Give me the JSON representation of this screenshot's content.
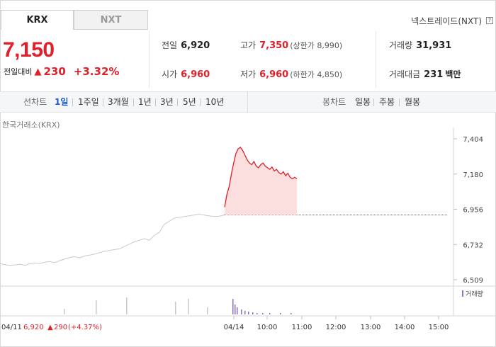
{
  "tabs": [
    {
      "label": "KRX"
    },
    {
      "label": "NXT"
    }
  ],
  "nxt_link": "넥스트레이드(NXT)",
  "quote": {
    "price": "7,150",
    "change_label": "전일대비",
    "change_value": "230",
    "change_pct": "+3.32%"
  },
  "stats": {
    "prev_close_label": "전일",
    "prev_close": "6,920",
    "open_label": "시가",
    "open": "6,960",
    "high_label": "고가",
    "high": "7,350",
    "upper_limit": "(상한가 8,990)",
    "low_label": "저가",
    "low": "6,960",
    "lower_limit": "(하한가 4,850)",
    "volume_label": "거래량",
    "volume": "31,931",
    "amount_label": "거래대금",
    "amount": "231",
    "amount_unit": "백만"
  },
  "toolbar": {
    "line_label": "선차트",
    "line_periods": [
      "1일",
      "1주일",
      "3개월",
      "1년",
      "3년",
      "5년",
      "10년"
    ],
    "candle_label": "봉차트",
    "candle_periods": [
      "일봉",
      "주봉",
      "월봉"
    ]
  },
  "source": "한국거래소(KRX)",
  "colors": {
    "up": "#e0202a",
    "active": "#1d5cc8",
    "volume": "#8a70c8"
  },
  "chart_data": {
    "type": "line",
    "y_ticks": [
      "7,404",
      "7,180",
      "6,956",
      "6,732",
      "6,509"
    ],
    "ylim": [
      6509,
      7404
    ],
    "x_ticks": [
      "04/14",
      "10:00",
      "11:00",
      "12:00",
      "13:00",
      "14:00",
      "15:00"
    ],
    "prev_day_label": "04/11",
    "prev_day_close": "6,920",
    "prev_day_change": "290",
    "prev_day_pct": "(+4.37%)",
    "volume_legend": "거래량",
    "baseline": 6920,
    "series": [
      {
        "values_prev_day": [
          6610,
          6605,
          6600,
          6603,
          6608,
          6600,
          6610,
          6615,
          6612,
          6620,
          6625,
          6618,
          6630,
          6640,
          6650,
          6655,
          6648,
          6660,
          6665,
          6672,
          6680,
          6690,
          6695,
          6700,
          6705,
          6720,
          6735,
          6750,
          6760,
          6770,
          6760,
          6790,
          6810,
          6860,
          6880,
          6900,
          6905,
          6910,
          6915,
          6920,
          6925,
          6920,
          6915,
          6910,
          6912,
          6920
        ]
      },
      {
        "values_today": [
          6970,
          7050,
          7100,
          7180,
          7250,
          7310,
          7340,
          7350,
          7330,
          7300,
          7270,
          7250,
          7240,
          7260,
          7230,
          7220,
          7240,
          7250,
          7230,
          7220,
          7210,
          7225,
          7200,
          7210,
          7190,
          7180,
          7195,
          7170,
          7185,
          7160,
          7150,
          7160,
          7150
        ]
      }
    ]
  }
}
